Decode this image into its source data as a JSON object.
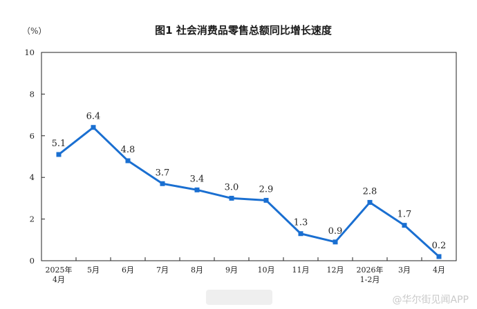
{
  "watermark": "@华尔街见闻APP",
  "chart_data": {
    "type": "line",
    "title": "图1  社会消费品零售总额同比增长速度",
    "unit": "（%）",
    "ylim": [
      0,
      10
    ],
    "yticks": [
      "0",
      "2",
      "4",
      "6",
      "8",
      "10"
    ],
    "categories": [
      [
        "2025年",
        "4月"
      ],
      [
        "5月"
      ],
      [
        "6月"
      ],
      [
        "7月"
      ],
      [
        "8月"
      ],
      [
        "9月"
      ],
      [
        "10月"
      ],
      [
        "11月"
      ],
      [
        "12月"
      ],
      [
        "2026年",
        "1-2月"
      ],
      [
        "3月"
      ],
      [
        "4月"
      ]
    ],
    "values": [
      5.1,
      6.4,
      4.8,
      3.7,
      3.4,
      3.0,
      2.9,
      1.3,
      0.9,
      2.8,
      1.7,
      0.2
    ],
    "value_labels": [
      "5.1",
      "6.4",
      "4.8",
      "3.7",
      "3.4",
      "3.0",
      "2.9",
      "1.3",
      "0.9",
      "2.8",
      "1.7",
      "0.2"
    ],
    "line_color": "#1a6fd1",
    "grid": false
  }
}
